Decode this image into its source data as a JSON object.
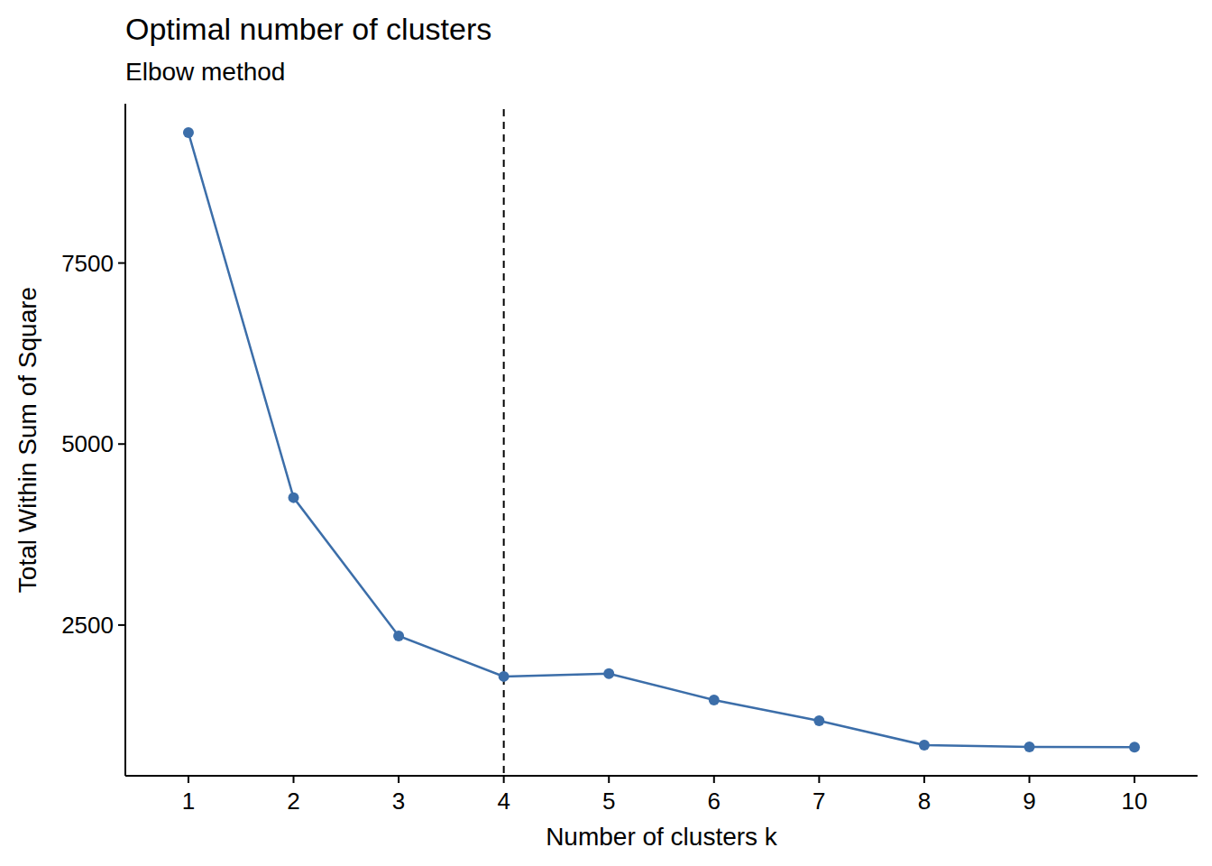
{
  "chart_data": {
    "type": "line",
    "title": "Optimal number of clusters",
    "subtitle": "Elbow method",
    "x_label": "Number of clusters k",
    "y_label": "Total Within Sum of Square",
    "x": [
      1,
      2,
      3,
      4,
      5,
      6,
      7,
      8,
      9,
      10
    ],
    "values": [
      9300,
      4260,
      2350,
      1790,
      1830,
      1465,
      1178,
      842,
      817,
      815
    ],
    "color": "#3C6EA9",
    "marker": "circle",
    "line_style": "solid",
    "xlim": [
      0.4,
      10.6
    ],
    "xticks": [
      1,
      2,
      3,
      4,
      5,
      6,
      7,
      8,
      9,
      10
    ],
    "ylim": [
      418,
      9700
    ],
    "yticks": [
      2500,
      5000,
      7500
    ],
    "optimal_k": 4,
    "grid": false
  }
}
